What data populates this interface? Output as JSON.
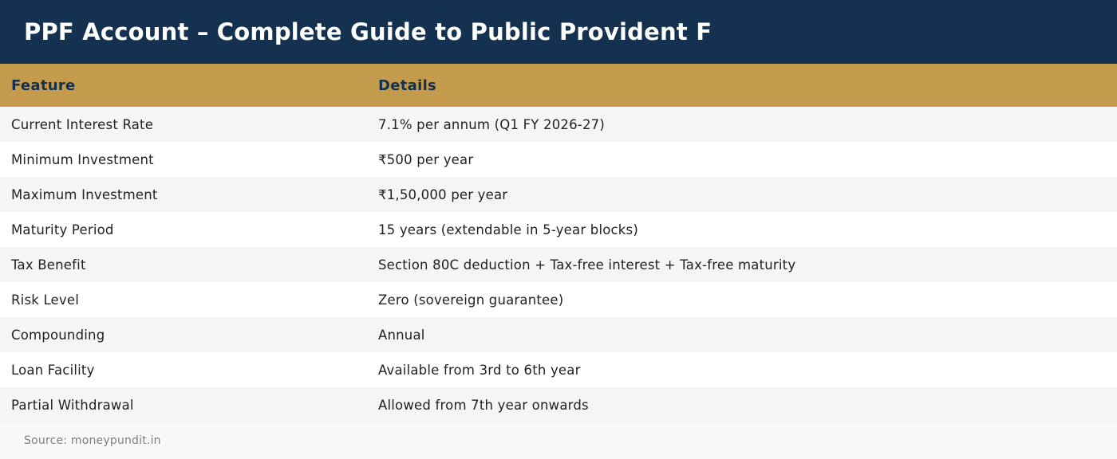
{
  "title": "PPF Account – Complete Guide to Public Provident F",
  "colors": {
    "header_bg": "#143150",
    "column_header_bg": "#c49a4c",
    "column_header_text": "#143150",
    "row_alt_bg": "#f4f5f7"
  },
  "table": {
    "headers": [
      "Feature",
      "Details"
    ],
    "rows": [
      [
        "Current Interest Rate",
        "7.1% per annum (Q1 FY 2026-27)"
      ],
      [
        "Minimum Investment",
        "₹500 per year"
      ],
      [
        "Maximum Investment",
        "₹1,50,000 per year"
      ],
      [
        "Maturity Period",
        "15 years (extendable in 5-year blocks)"
      ],
      [
        "Tax Benefit",
        "Section 80C deduction + Tax-free interest + Tax-free maturity"
      ],
      [
        "Risk Level",
        "Zero (sovereign guarantee)"
      ],
      [
        "Compounding",
        "Annual"
      ],
      [
        "Loan Facility",
        "Available from 3rd to 6th year"
      ],
      [
        "Partial Withdrawal",
        "Allowed from 7th year onwards"
      ]
    ]
  },
  "source": "Source: moneypundit.in"
}
